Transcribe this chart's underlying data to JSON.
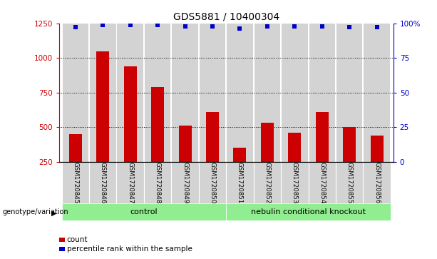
{
  "title": "GDS5881 / 10400304",
  "categories": [
    "GSM1720845",
    "GSM1720846",
    "GSM1720847",
    "GSM1720848",
    "GSM1720849",
    "GSM1720850",
    "GSM1720851",
    "GSM1720852",
    "GSM1720853",
    "GSM1720854",
    "GSM1720855",
    "GSM1720856"
  ],
  "bar_values": [
    450,
    1050,
    940,
    790,
    510,
    610,
    350,
    535,
    460,
    610,
    500,
    440
  ],
  "bar_color": "#cc0000",
  "dot_values_pct": [
    97,
    99,
    99,
    99,
    98,
    98,
    96,
    98,
    98,
    98,
    97,
    97
  ],
  "dot_color": "#0000cc",
  "ylim_left": [
    250,
    1250
  ],
  "ylim_right": [
    0,
    100
  ],
  "yticks_left": [
    250,
    500,
    750,
    1000,
    1250
  ],
  "yticks_right": [
    0,
    25,
    50,
    75,
    100
  ],
  "ylabel_right_ticks": [
    "0",
    "25",
    "50",
    "75",
    "100%"
  ],
  "groups": [
    {
      "label": "control",
      "start": 0,
      "end": 5,
      "color": "#90ee90"
    },
    {
      "label": "nebulin conditional knockout",
      "start": 6,
      "end": 11,
      "color": "#90ee90"
    }
  ],
  "group_row_label": "genotype/variation",
  "legend_items": [
    {
      "label": "count",
      "color": "#cc0000"
    },
    {
      "label": "percentile rank within the sample",
      "color": "#0000cc"
    }
  ],
  "bg_color": "#ffffff",
  "bar_bg_color": "#d3d3d3",
  "grid_color": "#000000",
  "title_fontsize": 10,
  "tick_fontsize": 7.5,
  "label_fontsize": 8
}
